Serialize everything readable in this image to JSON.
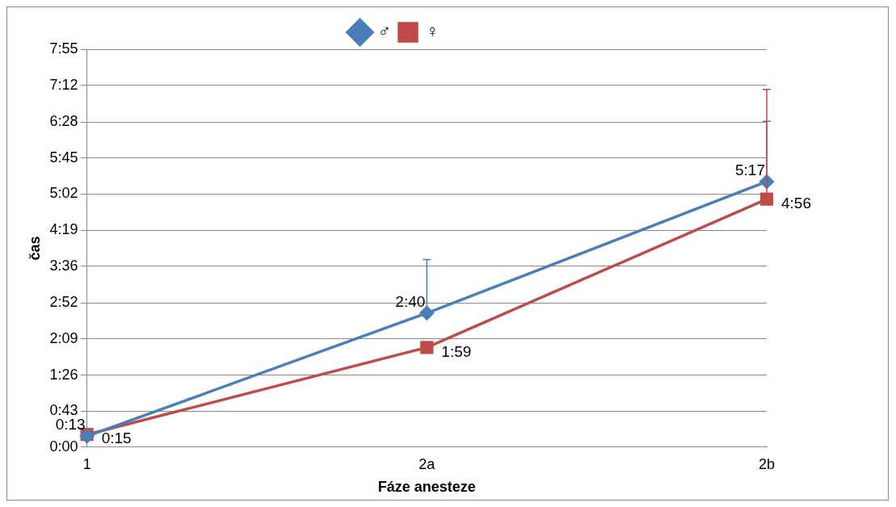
{
  "chart_data": {
    "type": "line",
    "xlabel": "Fáze anesteze",
    "ylabel": "čas",
    "categories": [
      "1",
      "2a",
      "2b"
    ],
    "series": [
      {
        "name": "♂",
        "color": "#4a7ebb",
        "marker": "diamond",
        "values": [
          13,
          160,
          317
        ],
        "value_labels": [
          "0:13",
          "2:40",
          "5:17"
        ],
        "errors": [
          null,
          [
            160,
            224
          ],
          [
            317,
            389
          ]
        ]
      },
      {
        "name": "♀",
        "color": "#be4b48",
        "marker": "square",
        "values": [
          15,
          119,
          296
        ],
        "value_labels": [
          "0:15",
          "1:59",
          "4:56"
        ],
        "errors": [
          null,
          null,
          [
            296,
            427
          ]
        ]
      }
    ],
    "ylim": [
      0,
      475
    ],
    "yticks": [
      {
        "value": 0,
        "label": "0:00"
      },
      {
        "value": 43,
        "label": "0:43"
      },
      {
        "value": 86,
        "label": "1:26"
      },
      {
        "value": 129,
        "label": "2:09"
      },
      {
        "value": 172,
        "label": "2:52"
      },
      {
        "value": 216,
        "label": "3:36"
      },
      {
        "value": 259,
        "label": "4:19"
      },
      {
        "value": 302,
        "label": "5:02"
      },
      {
        "value": 345,
        "label": "5:45"
      },
      {
        "value": 388,
        "label": "6:28"
      },
      {
        "value": 432,
        "label": "7:12"
      },
      {
        "value": 475,
        "label": "7:55"
      }
    ],
    "grid": "y",
    "legend": "top"
  }
}
